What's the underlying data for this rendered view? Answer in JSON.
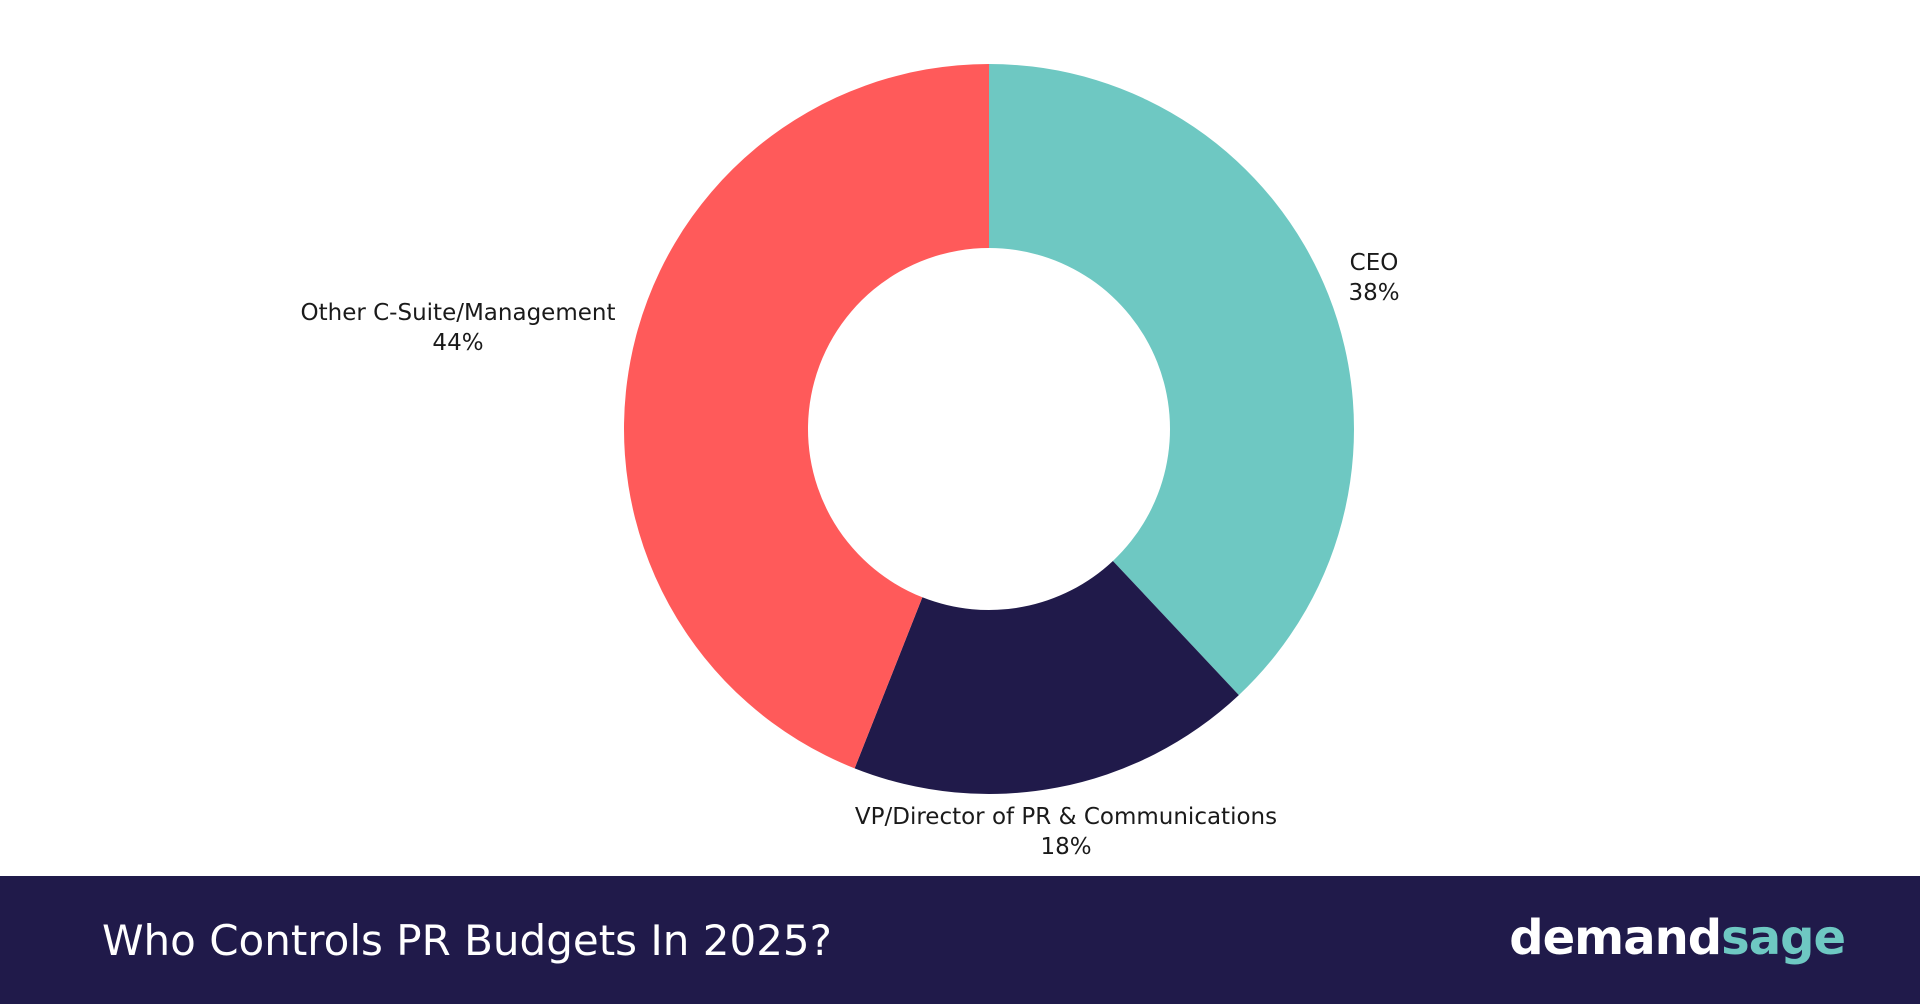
{
  "chart_data": {
    "type": "pie",
    "subtype": "donut",
    "title": "Who Controls PR Budgets In 2025?",
    "slices": [
      {
        "label": "CEO",
        "value": 38,
        "value_label": "38%",
        "color": "#6EC8C2"
      },
      {
        "label": "VP/Director of PR & Communications",
        "value": 18,
        "value_label": "18%",
        "color": "#201A4A"
      },
      {
        "label": "Other C-Suite/Management",
        "value": 44,
        "value_label": "44%",
        "color": "#FF5A5A"
      }
    ],
    "start_angle": "top",
    "direction": "clockwise",
    "legend": "none"
  },
  "footer": {
    "title": "Who Controls PR Budgets In 2025?",
    "logo_part1": "demand",
    "logo_part2": "sage",
    "background": "#201A4A"
  }
}
